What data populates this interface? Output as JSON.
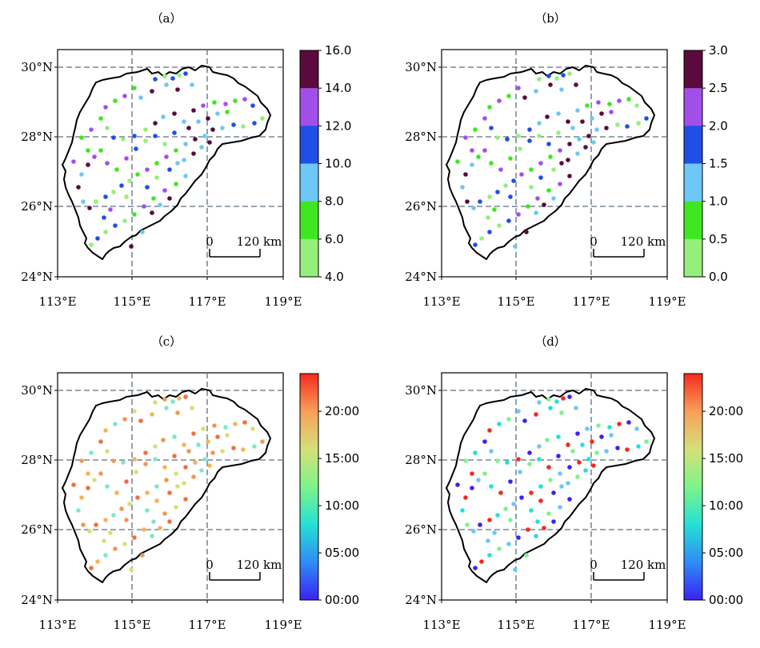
{
  "figure": {
    "panels": [
      {
        "label": "（a）",
        "lat_labels": [
          "30°N",
          "28°N",
          "26°N",
          "24°N"
        ],
        "lon_labels": [
          "113°E",
          "115°E",
          "117°E",
          "119°E"
        ],
        "scalebar": {
          "zero": "0",
          "label": "120 km"
        },
        "colorbar": {
          "ticks": [
            "16.0",
            "14.0",
            "12.0",
            "10.0",
            "8.0",
            "6.0",
            "4.0"
          ],
          "colors": [
            "#5a0a3c",
            "#a24fea",
            "#1e4fe6",
            "#6ec8f7",
            "#3ee820",
            "#94f07a"
          ]
        }
      },
      {
        "label": "（b）",
        "lat_labels": [
          "30°N",
          "28°N",
          "26°N",
          "24°N"
        ],
        "lon_labels": [
          "113°E",
          "115°E",
          "117°E",
          "119°E"
        ],
        "scalebar": {
          "zero": "0",
          "label": "120 km"
        },
        "colorbar": {
          "ticks": [
            "3.0",
            "2.5",
            "2.0",
            "1.5",
            "1.0",
            "0.5",
            "0.0"
          ],
          "colors": [
            "#5a0a3c",
            "#a24fea",
            "#1e4fe6",
            "#6ec8f7",
            "#3ee820",
            "#94f07a"
          ]
        }
      },
      {
        "label": "（c）",
        "lat_labels": [
          "30°N",
          "28°N",
          "26°N",
          "24°N"
        ],
        "lon_labels": [
          "113°E",
          "115°E",
          "117°E",
          "119°E"
        ],
        "scalebar": {
          "zero": "0",
          "label": "120 km"
        },
        "colorbar": {
          "ticks": [
            "20:00",
            "15:00",
            "10:00",
            "05:00",
            "00:00"
          ],
          "gradient": [
            "#3a22f5",
            "#2f8cf5",
            "#25e0d6",
            "#7df48a",
            "#d6e07a",
            "#f8a058",
            "#f42a1c"
          ]
        }
      },
      {
        "label": "（d）",
        "lat_labels": [
          "30°N",
          "28°N",
          "26°N",
          "24°N"
        ],
        "lon_labels": [
          "113°E",
          "115°E",
          "117°E",
          "119°E"
        ],
        "scalebar": {
          "zero": "0",
          "label": "120 km"
        },
        "colorbar": {
          "ticks": [
            "20:00",
            "15:00",
            "10:00",
            "05:00",
            "00:00"
          ],
          "gradient": [
            "#3a22f5",
            "#2f8cf5",
            "#25e0d6",
            "#7df48a",
            "#d6e07a",
            "#f8a058",
            "#f42a1c"
          ]
        }
      }
    ],
    "station_colors": {
      "a": [
        "#94f07a",
        "#3ee820",
        "#6ec8f7",
        "#1e4fe6",
        "#a24fea",
        "#5a0a3c"
      ],
      "b": [
        "#94f07a",
        "#3ee820",
        "#6ec8f7",
        "#1e4fe6",
        "#a24fea",
        "#5a0a3c"
      ],
      "c": [
        "#f8a058",
        "#f4b45a",
        "#d6e07a",
        "#f07040",
        "#ee9a52",
        "#b8e87a",
        "#7de8c8"
      ],
      "d": [
        "#7df48a",
        "#2f55e8",
        "#25e0d6",
        "#b8f07a",
        "#f42a1c",
        "#6ec8f7",
        "#3a22f5"
      ]
    }
  }
}
